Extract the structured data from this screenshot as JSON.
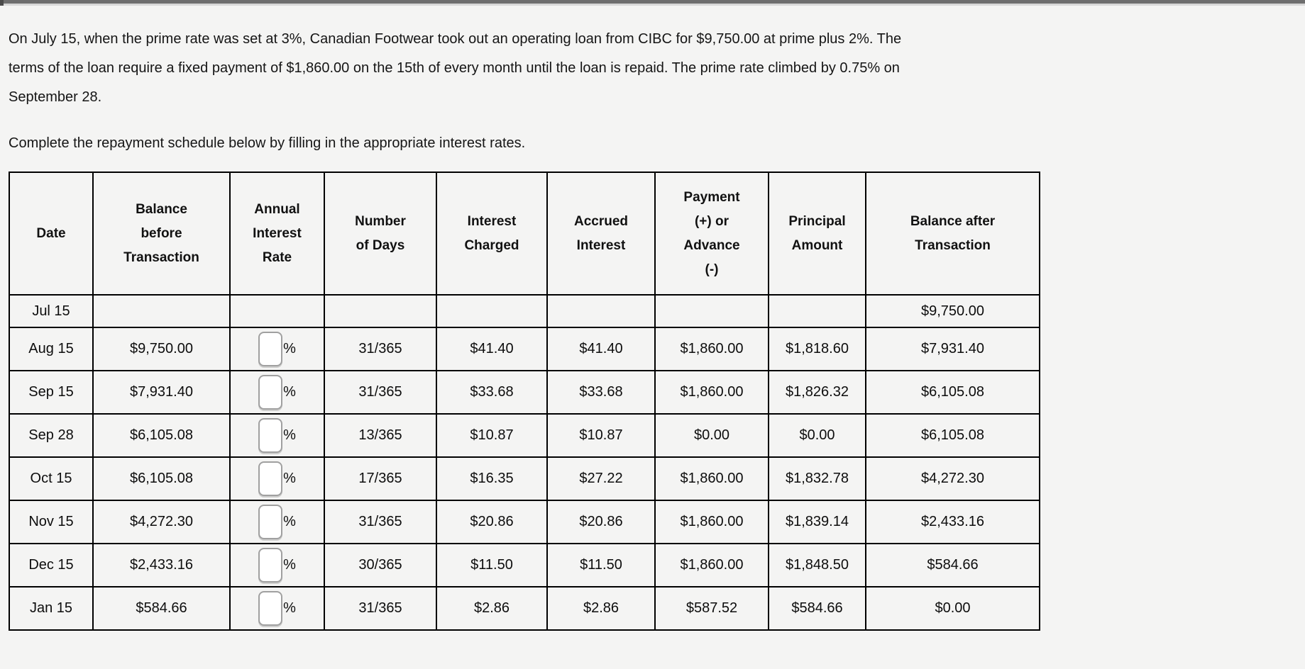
{
  "page": {
    "background_color": "#f4f4f3",
    "top_bar_color": "#6e6e6e",
    "top_bar_underline_color": "#d8d8d8"
  },
  "problem": {
    "lines": [
      "On July 15, when the prime rate was set at 3%, Canadian Footwear took out an operating loan from CIBC for $9,750.00 at prime plus 2%. The",
      "terms of the loan require a fixed payment of $1,860.00 on the 15th of every month until the loan is repaid. The prime rate climbed by 0.75% on",
      "September 28."
    ],
    "instruction": "Complete the repayment schedule below by filling in the appropriate interest rates."
  },
  "table": {
    "columns": [
      {
        "key": "date",
        "label": "Date"
      },
      {
        "key": "balance_before",
        "label": "Balance\nbefore\nTransaction"
      },
      {
        "key": "rate",
        "label": "Annual\nInterest\nRate"
      },
      {
        "key": "days",
        "label": "Number\nof Days"
      },
      {
        "key": "interest_charged",
        "label": "Interest\nCharged"
      },
      {
        "key": "accrued_interest",
        "label": "Accrued\nInterest"
      },
      {
        "key": "payment",
        "label": "Payment\n(+) or\nAdvance\n(-)"
      },
      {
        "key": "principal",
        "label": "Principal\nAmount"
      },
      {
        "key": "balance_after",
        "label": "Balance after\nTransaction"
      }
    ],
    "rate_input_value": "",
    "rate_suffix": "%",
    "rows": [
      {
        "date": "Jul 15",
        "balance_before": "",
        "rate_input": false,
        "days": "",
        "interest_charged": "",
        "accrued_interest": "",
        "payment": "",
        "principal": "",
        "balance_after": "$9,750.00"
      },
      {
        "date": "Aug 15",
        "balance_before": "$9,750.00",
        "rate_input": true,
        "days": "31/365",
        "interest_charged": "$41.40",
        "accrued_interest": "$41.40",
        "payment": "$1,860.00",
        "principal": "$1,818.60",
        "balance_after": "$7,931.40"
      },
      {
        "date": "Sep 15",
        "balance_before": "$7,931.40",
        "rate_input": true,
        "days": "31/365",
        "interest_charged": "$33.68",
        "accrued_interest": "$33.68",
        "payment": "$1,860.00",
        "principal": "$1,826.32",
        "balance_after": "$6,105.08"
      },
      {
        "date": "Sep 28",
        "balance_before": "$6,105.08",
        "rate_input": true,
        "days": "13/365",
        "interest_charged": "$10.87",
        "accrued_interest": "$10.87",
        "payment": "$0.00",
        "principal": "$0.00",
        "balance_after": "$6,105.08"
      },
      {
        "date": "Oct 15",
        "balance_before": "$6,105.08",
        "rate_input": true,
        "days": "17/365",
        "interest_charged": "$16.35",
        "accrued_interest": "$27.22",
        "payment": "$1,860.00",
        "principal": "$1,832.78",
        "balance_after": "$4,272.30"
      },
      {
        "date": "Nov 15",
        "balance_before": "$4,272.30",
        "rate_input": true,
        "days": "31/365",
        "interest_charged": "$20.86",
        "accrued_interest": "$20.86",
        "payment": "$1,860.00",
        "principal": "$1,839.14",
        "balance_after": "$2,433.16"
      },
      {
        "date": "Dec 15",
        "balance_before": "$2,433.16",
        "rate_input": true,
        "days": "30/365",
        "interest_charged": "$11.50",
        "accrued_interest": "$11.50",
        "payment": "$1,860.00",
        "principal": "$1,848.50",
        "balance_after": "$584.66"
      },
      {
        "date": "Jan 15",
        "balance_before": "$584.66",
        "rate_input": true,
        "days": "31/365",
        "interest_charged": "$2.86",
        "accrued_interest": "$2.86",
        "payment": "$587.52",
        "principal": "$584.66",
        "balance_after": "$0.00"
      }
    ]
  }
}
